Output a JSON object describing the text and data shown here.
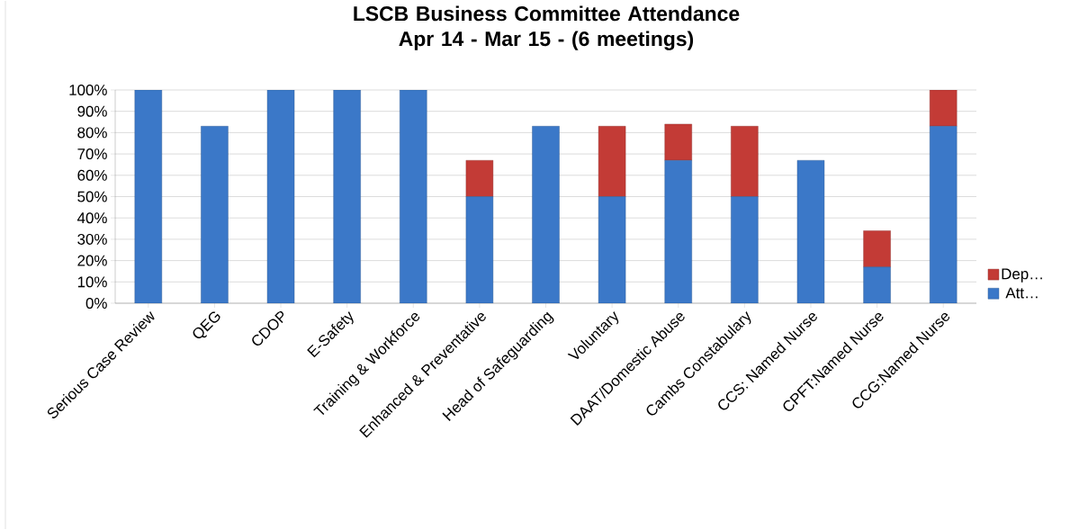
{
  "chart_data": {
    "type": "bar",
    "title": "LSCB Business Committee Attendance Apr 14 - Mar 15 - (6 meetings)",
    "categories": [
      "Serious Case Review",
      "QEG",
      "CDOP",
      "E-Safety",
      "Training & Workforce",
      "Enhanced & Preventative",
      "Head of Safeguarding",
      "Voluntary",
      "DAAT/Domestic Abuse",
      "Cambs Constabulary",
      "CCS: Named Nurse",
      "CPFT:Named Nurse",
      "CCG:Named Nurse"
    ],
    "stacked": true,
    "series": [
      {
        "name": "Att…",
        "color": "#3b78c8",
        "values": [
          100,
          83,
          100,
          100,
          100,
          50,
          83,
          50,
          67,
          50,
          67,
          17,
          83
        ]
      },
      {
        "name": "Dep…",
        "color": "#c33b36",
        "values": [
          0,
          0,
          0,
          0,
          0,
          17,
          0,
          33,
          17,
          33,
          0,
          17,
          17
        ]
      }
    ],
    "ylim": [
      0,
      100
    ],
    "yticks": [
      {
        "value": 0,
        "label": "0%"
      },
      {
        "value": 10,
        "label": "10%"
      },
      {
        "value": 20,
        "label": "20%"
      },
      {
        "value": 30,
        "label": "30%"
      },
      {
        "value": 40,
        "label": "40%"
      },
      {
        "value": 50,
        "label": "50%"
      },
      {
        "value": 60,
        "label": "60%"
      },
      {
        "value": 70,
        "label": "70%"
      },
      {
        "value": 80,
        "label": "80%"
      },
      {
        "value": 90,
        "label": "90%"
      },
      {
        "value": 100,
        "label": "100%"
      }
    ],
    "grid": "y",
    "legend": "right"
  }
}
